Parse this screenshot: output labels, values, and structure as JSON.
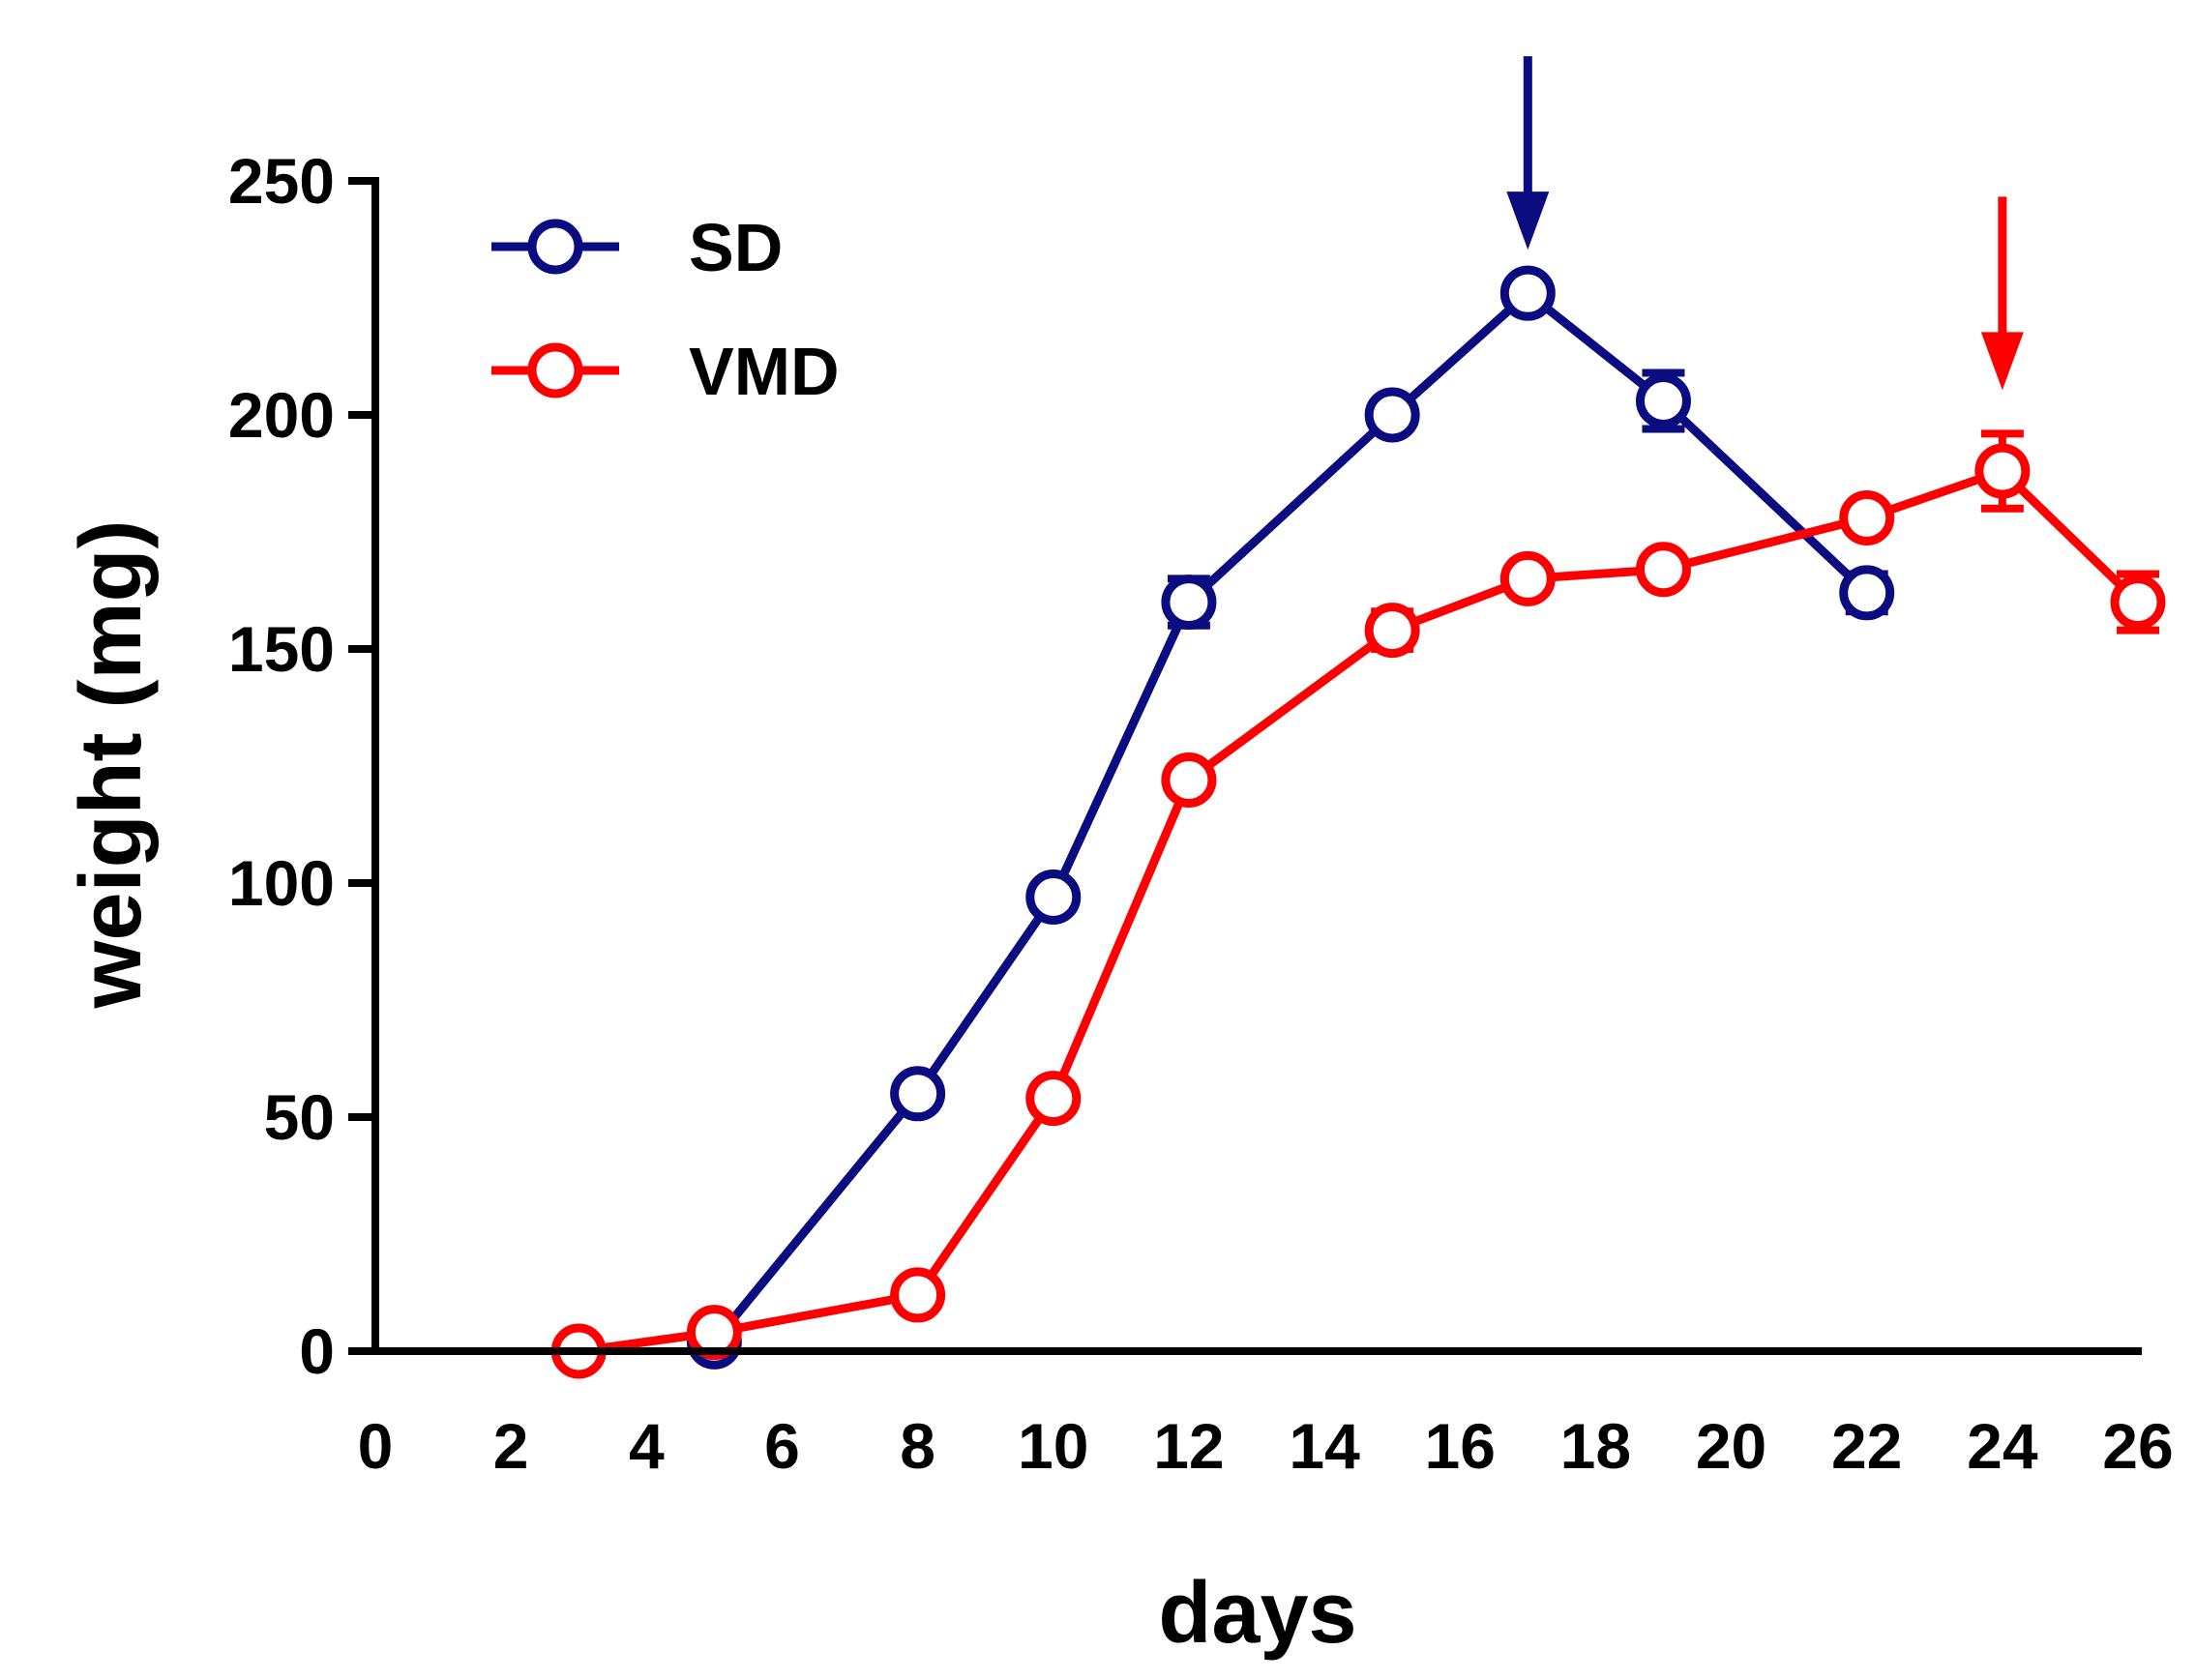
{
  "chart_data": {
    "type": "line",
    "title": "",
    "xlabel": "days",
    "ylabel": "weight (mg)",
    "xlim": [
      0,
      26
    ],
    "ylim": [
      0,
      250
    ],
    "xticks": [
      0,
      2,
      4,
      6,
      8,
      10,
      12,
      14,
      16,
      18,
      20,
      22,
      24,
      26
    ],
    "yticks": [
      0,
      50,
      100,
      150,
      200,
      250
    ],
    "legend_position": "top-left",
    "series": [
      {
        "name": "SD",
        "color": "#0b0c80",
        "x": [
          5,
          8,
          10,
          12,
          15,
          17,
          19,
          22
        ],
        "y": [
          2,
          55,
          97,
          160,
          200,
          226,
          203,
          162
        ],
        "err": [
          0,
          0,
          0,
          5,
          0,
          0,
          6,
          4
        ],
        "arrow_at_x": 17
      },
      {
        "name": "VMD",
        "color": "#ff0000",
        "x": [
          3,
          5,
          8,
          10,
          12,
          15,
          17,
          19,
          22,
          24,
          26
        ],
        "y": [
          0,
          4,
          12,
          54,
          122,
          154,
          165,
          167,
          178,
          188,
          160
        ],
        "err": [
          0,
          0,
          0,
          0,
          0,
          4,
          0,
          0,
          0,
          8,
          6
        ],
        "arrow_at_x": 24
      }
    ]
  }
}
